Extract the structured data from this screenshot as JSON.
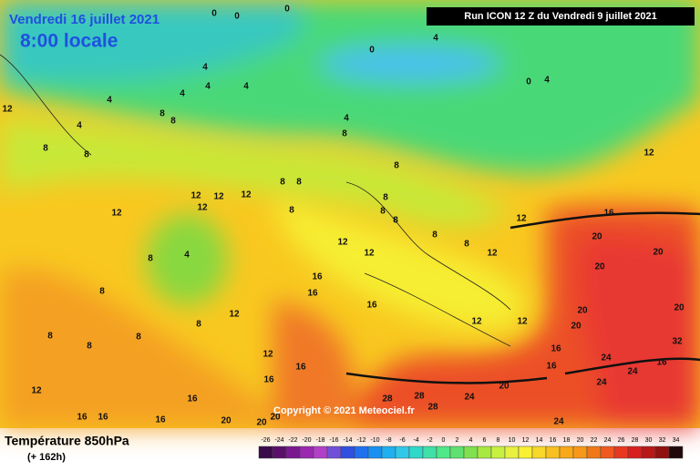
{
  "header": {
    "date": "Vendredi 16 juillet 2021",
    "time": "8:00 locale",
    "run": "Run ICON 12 Z du Vendredi 9 juillet 2021"
  },
  "copyright": "Copyright © 2021 Meteociel.fr",
  "footer": {
    "title": "Température 850hPa",
    "lead": "(+ 162h)"
  },
  "contour_labels": [
    0,
    0,
    0,
    4,
    0,
    0,
    4,
    4,
    4,
    4,
    4,
    4,
    12,
    4,
    8,
    8,
    4,
    8,
    8,
    8,
    12,
    8,
    8,
    8,
    12,
    12,
    12,
    12,
    12,
    8,
    8,
    8,
    8,
    12,
    16,
    12,
    12,
    8,
    8,
    12,
    20,
    20,
    4,
    8,
    20,
    16,
    8,
    16,
    20,
    12,
    16,
    20,
    8,
    8,
    8,
    8,
    12,
    12,
    20,
    32,
    16,
    24,
    12,
    16,
    16,
    24,
    16,
    12,
    16,
    16,
    20,
    24,
    28,
    28,
    24,
    28,
    16,
    16,
    16,
    20,
    20,
    20,
    24
  ],
  "scale": {
    "ticks": [
      -26,
      -24,
      -22,
      -20,
      -18,
      -16,
      -14,
      -12,
      -10,
      -8,
      -6,
      -4,
      -2,
      0,
      2,
      4,
      6,
      8,
      10,
      12,
      14,
      16,
      18,
      20,
      22,
      24,
      26,
      28,
      30,
      32,
      34
    ],
    "colors": [
      "#3a0a4a",
      "#5a106a",
      "#7a1890",
      "#9a28b0",
      "#b040c8",
      "#7050d8",
      "#3050e0",
      "#2070f0",
      "#1890f0",
      "#20b0f0",
      "#30c8e8",
      "#30d8c8",
      "#40e0a8",
      "#50e888",
      "#60e070",
      "#80e050",
      "#a8e840",
      "#c8f040",
      "#e8f040",
      "#f8f030",
      "#f8d828",
      "#f8c020",
      "#f8a818",
      "#f89818",
      "#f07818",
      "#f05820",
      "#e83820",
      "#d82020",
      "#b81818",
      "#901010",
      "#200808"
    ]
  }
}
